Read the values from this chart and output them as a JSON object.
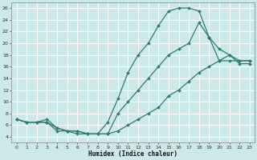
{
  "xlabel": "Humidex (Indice chaleur)",
  "bg_color": "#cce8e8",
  "grid_color": "#ffffff",
  "line_color": "#2e7d6e",
  "marker_color": "#2e7d6e",
  "xlim": [
    -0.5,
    23.5
  ],
  "ylim": [
    3,
    27
  ],
  "xticks": [
    0,
    1,
    2,
    3,
    4,
    5,
    6,
    7,
    8,
    9,
    10,
    11,
    12,
    13,
    14,
    15,
    16,
    17,
    18,
    19,
    20,
    21,
    22,
    23
  ],
  "yticks": [
    4,
    6,
    8,
    10,
    12,
    14,
    16,
    18,
    20,
    22,
    24,
    26
  ],
  "line1_x": [
    0,
    1,
    2,
    3,
    4,
    5,
    6,
    7,
    8,
    9,
    10,
    11,
    12,
    13,
    14,
    15,
    16,
    17,
    18,
    19,
    20,
    21,
    22,
    23
  ],
  "line1_y": [
    7,
    6.5,
    6.5,
    6.5,
    5,
    5,
    5,
    4.5,
    4.5,
    6.5,
    10.5,
    15,
    18,
    20,
    23,
    25.5,
    26,
    26,
    25.5,
    21,
    17,
    17,
    17,
    17
  ],
  "line2_x": [
    0,
    1,
    2,
    3,
    4,
    5,
    6,
    7,
    8,
    9,
    10,
    11,
    12,
    13,
    14,
    15,
    16,
    17,
    18,
    19,
    20,
    21,
    22,
    23
  ],
  "line2_y": [
    7,
    6.5,
    6.5,
    7,
    5.5,
    5,
    5,
    4.5,
    4.5,
    4.5,
    8,
    10,
    12,
    14,
    16,
    18,
    19,
    20,
    23.5,
    21,
    19,
    18,
    17,
    17
  ],
  "line3_x": [
    0,
    1,
    2,
    3,
    4,
    5,
    6,
    7,
    8,
    9,
    10,
    11,
    12,
    13,
    14,
    15,
    16,
    17,
    18,
    19,
    20,
    21,
    22,
    23
  ],
  "line3_y": [
    7,
    6.5,
    6.5,
    6.5,
    5.5,
    5,
    4.5,
    4.5,
    4.5,
    4.5,
    5,
    6,
    7,
    8,
    9,
    11,
    12,
    13.5,
    15,
    16,
    17,
    18,
    16.5,
    16.5
  ],
  "line1_marker_x": [
    0,
    1,
    2,
    3,
    4,
    5,
    6,
    7,
    8,
    9,
    10,
    11,
    12,
    13,
    14,
    15,
    16,
    17,
    18,
    19,
    20,
    21,
    22,
    23
  ],
  "line2_marker_x": [
    0,
    1,
    2,
    3,
    4,
    5,
    6,
    7,
    8,
    9,
    10,
    11,
    12,
    13,
    14,
    15,
    16,
    17,
    18,
    19,
    20,
    21,
    22,
    23
  ],
  "line3_marker_x": [
    0,
    1,
    2,
    3,
    4,
    5,
    6,
    7,
    8,
    9,
    10,
    11,
    12,
    13,
    14,
    15,
    16,
    17,
    18,
    19,
    20,
    21,
    22,
    23
  ]
}
